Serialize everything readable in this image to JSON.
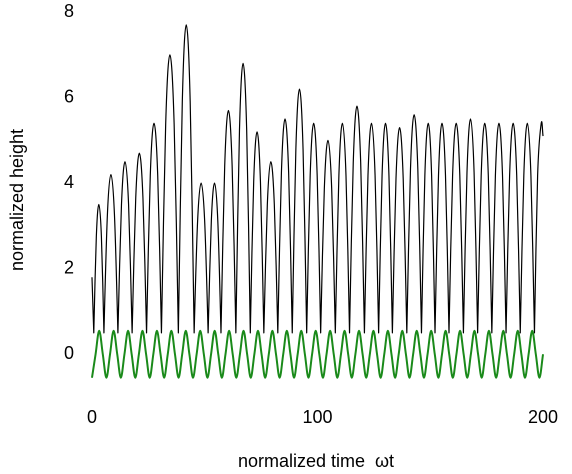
{
  "chart_data": {
    "type": "line",
    "xlabel": "normalized time  ωt",
    "ylabel": "normalized height",
    "xlim": [
      -5,
      203
    ],
    "ylim": [
      -1,
      8.2
    ],
    "xticks": [
      0,
      100,
      200
    ],
    "yticks": [
      0,
      2,
      4,
      6,
      8
    ],
    "grid": false,
    "series": [
      {
        "color": "#000000",
        "interpolation": "cusped",
        "x": [
          0,
          0.8,
          1.93,
          3.05,
          4.18,
          5.3,
          6.85,
          8.4,
          9.95,
          11.5,
          13.08,
          14.65,
          16.23,
          17.8,
          19.4,
          21,
          22.6,
          24.2,
          25.85,
          27.5,
          29.15,
          30.8,
          32.68,
          34.55,
          36.43,
          38.3,
          40.05,
          41.8,
          43.55,
          45.3,
          46.85,
          48.4,
          49.95,
          51.5,
          52.93,
          54.35,
          55.78,
          57.2,
          58.85,
          60.5,
          62.15,
          63.8,
          65.4,
          67,
          68.6,
          70.2,
          71.7,
          73.2,
          74.7,
          76.2,
          77.75,
          79.3,
          80.85,
          82.4,
          84,
          85.6,
          87.2,
          88.8,
          90.4,
          92,
          93.6,
          95.2,
          96.75,
          98.3,
          99.85,
          101.4,
          103.03,
          104.65,
          106.28,
          107.9,
          109.48,
          111.05,
          112.63,
          114.2,
          115.85,
          117.5,
          119.15,
          120.8,
          122.38,
          123.95,
          125.53,
          127.1,
          128.63,
          130.15,
          131.68,
          133.2,
          134.8,
          136.4,
          138,
          139.6,
          141.23,
          142.85,
          144.48,
          146.1,
          147.6,
          149.1,
          150.6,
          152.1,
          153.65,
          155.2,
          156.75,
          158.3,
          159.9,
          161.5,
          163.1,
          164.7,
          166.28,
          167.85,
          169.43,
          171,
          172.58,
          174.15,
          175.73,
          177.3,
          178.88,
          180.45,
          182.03,
          183.6,
          185.18,
          186.75,
          188.33,
          189.9,
          191.48,
          193.05,
          194.63,
          196.2,
          197.6,
          199.2,
          200
        ],
        "values": [
          1.8,
          0.5,
          2.75,
          3.5,
          2.75,
          0.5,
          3.28,
          4.2,
          3.28,
          0.5,
          3.5,
          4.5,
          3.5,
          0.5,
          3.65,
          4.7,
          3.65,
          0.5,
          4.18,
          5.4,
          4.18,
          0.5,
          5.38,
          7.0,
          5.38,
          0.5,
          5.9,
          7.7,
          5.9,
          0.5,
          3.13,
          4.0,
          3.13,
          0.5,
          3.13,
          4.0,
          3.13,
          0.5,
          4.4,
          5.7,
          4.4,
          0.5,
          5.23,
          6.8,
          5.23,
          0.5,
          4.03,
          5.2,
          4.03,
          0.5,
          3.5,
          4.5,
          3.5,
          0.5,
          4.25,
          5.5,
          4.25,
          0.5,
          4.78,
          6.2,
          4.78,
          0.5,
          4.18,
          5.4,
          4.18,
          0.5,
          3.88,
          5.0,
          3.88,
          0.5,
          4.18,
          5.4,
          4.18,
          0.5,
          4.48,
          5.8,
          4.48,
          0.5,
          4.18,
          5.4,
          4.18,
          0.5,
          4.18,
          5.4,
          4.18,
          0.5,
          4.1,
          5.3,
          4.1,
          0.5,
          4.33,
          5.6,
          4.33,
          0.5,
          4.18,
          5.4,
          4.18,
          0.5,
          4.18,
          5.4,
          4.18,
          0.5,
          4.18,
          5.4,
          4.18,
          0.5,
          4.25,
          5.5,
          4.25,
          0.5,
          4.18,
          5.4,
          4.18,
          0.5,
          4.18,
          5.4,
          4.18,
          0.5,
          4.18,
          5.4,
          4.18,
          0.5,
          4.18,
          5.4,
          4.18,
          0.5,
          4.18,
          5.4,
          5.1
        ]
      },
      {
        "color": "#1a8a1a",
        "interpolation": "smooth",
        "x": [
          0,
          1.6,
          3.2,
          4.8,
          6.4,
          8,
          9.6,
          11.2,
          12.8,
          14.4,
          16,
          17.6,
          19.2,
          20.8,
          22.4,
          24,
          25.6,
          27.2,
          28.8,
          30.4,
          32,
          33.6,
          35.2,
          36.8,
          38.4,
          40,
          41.6,
          43.2,
          44.8,
          46.4,
          48,
          49.6,
          51.2,
          52.8,
          54.4,
          56,
          57.6,
          59.2,
          60.8,
          62.4,
          64,
          65.6,
          67.2,
          68.8,
          70.4,
          72,
          73.6,
          75.2,
          76.8,
          78.4,
          80,
          81.6,
          83.2,
          84.8,
          86.4,
          88,
          89.6,
          91.2,
          92.8,
          94.4,
          96,
          97.6,
          99.2,
          100.8,
          102.4,
          104,
          105.6,
          107.2,
          108.8,
          110.4,
          112,
          113.6,
          115.2,
          116.8,
          118.4,
          120,
          121.6,
          123.2,
          124.8,
          126.4,
          128,
          129.6,
          131.2,
          132.8,
          134.4,
          136,
          137.6,
          139.2,
          140.8,
          142.4,
          144,
          145.6,
          147.2,
          148.8,
          150.4,
          152,
          153.6,
          155.2,
          156.8,
          158.4,
          160,
          161.6,
          163.2,
          164.8,
          166.4,
          168,
          169.6,
          171.2,
          172.8,
          174.4,
          176,
          177.6,
          179.2,
          180.8,
          182.4,
          184,
          185.6,
          187.2,
          188.8,
          190.4,
          192,
          193.6,
          195.2,
          196.8,
          198.4,
          200
        ],
        "values": [
          -0.55,
          0,
          0.55,
          0,
          -0.55,
          0,
          0.55,
          0,
          -0.55,
          0,
          0.55,
          0,
          -0.55,
          0,
          0.55,
          0,
          -0.55,
          0,
          0.55,
          0,
          -0.55,
          0,
          0.55,
          0,
          -0.55,
          0,
          0.55,
          0,
          -0.55,
          0,
          0.55,
          0,
          -0.55,
          0,
          0.55,
          0,
          -0.55,
          0,
          0.55,
          0,
          -0.55,
          0,
          0.55,
          0,
          -0.55,
          0,
          0.55,
          0,
          -0.55,
          0,
          0.55,
          0,
          -0.55,
          0,
          0.55,
          0,
          -0.55,
          0,
          0.55,
          0,
          -0.55,
          0,
          0.55,
          0,
          -0.55,
          0,
          0.55,
          0,
          -0.55,
          0,
          0.55,
          0,
          -0.55,
          0,
          0.55,
          0,
          -0.55,
          0,
          0.55,
          0,
          -0.55,
          0,
          0.55,
          0,
          -0.55,
          0,
          0.55,
          0,
          -0.55,
          0,
          0.55,
          0,
          -0.55,
          0,
          0.55,
          0,
          -0.55,
          0,
          0.55,
          0,
          -0.55,
          0,
          0.55,
          0,
          -0.55,
          0,
          0.55,
          0,
          -0.55,
          0,
          0.55,
          0,
          -0.55,
          0,
          0.55,
          0,
          -0.55,
          0,
          0.55,
          0,
          -0.55,
          0,
          0.55,
          0,
          -0.55,
          0
        ]
      }
    ]
  }
}
